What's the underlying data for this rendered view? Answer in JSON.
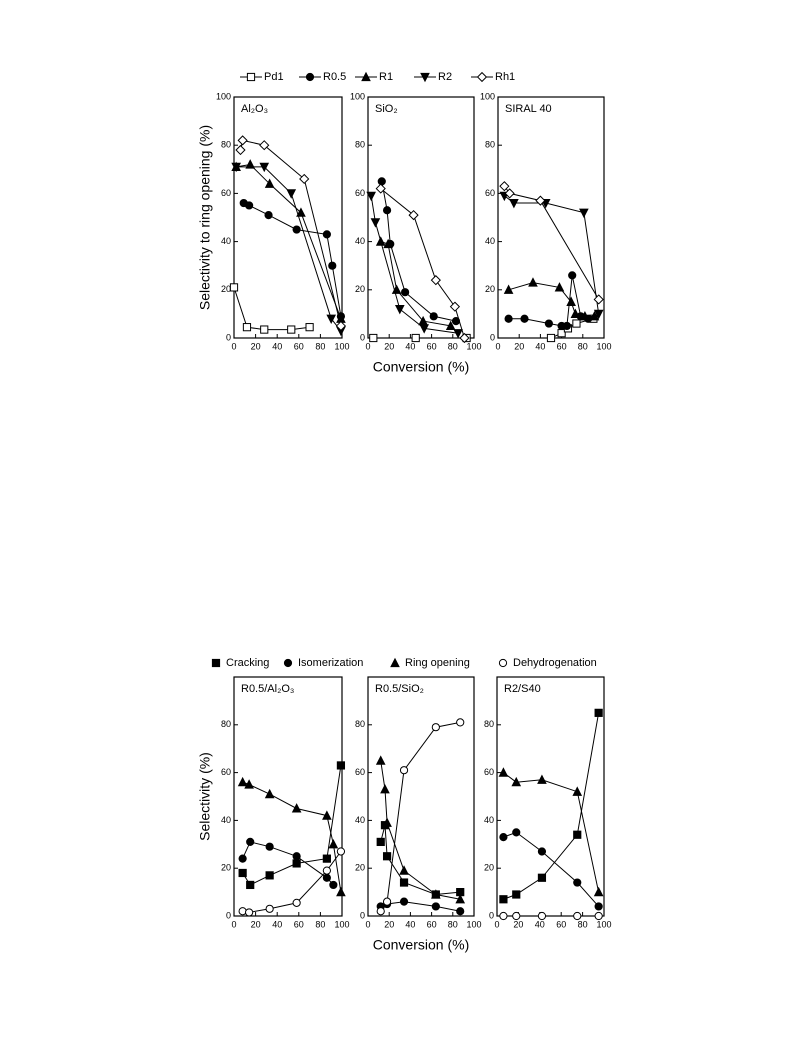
{
  "chart_data": [
    {
      "type": "scatter",
      "title": "Al₂O₃",
      "ylabel": "Selectivity to ring opening (%)",
      "xlim": [
        0,
        100
      ],
      "ylim": [
        0,
        100
      ],
      "xticks": [
        0,
        20,
        40,
        60,
        80,
        100
      ],
      "yticks": [
        0,
        20,
        40,
        60,
        80,
        100
      ],
      "series": [
        {
          "name": "Pd1",
          "color": "#000000",
          "marker": "open-square",
          "x": [
            0,
            12,
            28,
            53,
            70
          ],
          "values": [
            21,
            4.5,
            3.5,
            3.5,
            4.5
          ]
        },
        {
          "name": "R0.5",
          "color": "#000000",
          "marker": "filled-circle",
          "x": [
            9,
            14,
            32,
            58,
            86,
            91,
            99
          ],
          "values": [
            56,
            55,
            51,
            45,
            43,
            30,
            9
          ]
        },
        {
          "name": "R1",
          "color": "#000000",
          "marker": "filled-triangle-up",
          "x": [
            2,
            15,
            33,
            62,
            99
          ],
          "values": [
            71,
            72,
            64,
            52,
            8
          ]
        },
        {
          "name": "R2",
          "color": "#000000",
          "marker": "filled-triangle-down",
          "x": [
            2,
            28,
            53,
            90,
            99
          ],
          "values": [
            71,
            71,
            60,
            8,
            3
          ]
        },
        {
          "name": "Rh1",
          "color": "#000000",
          "marker": "open-diamond",
          "x": [
            6,
            8,
            28,
            65,
            99
          ],
          "values": [
            78,
            82,
            80,
            66,
            5
          ]
        }
      ]
    },
    {
      "type": "scatter",
      "title": "SiO₂",
      "xlabel": "Conversion (%)",
      "xlim": [
        0,
        100
      ],
      "ylim": [
        0,
        100
      ],
      "xticks": [
        0,
        20,
        40,
        60,
        80,
        100
      ],
      "yticks": [
        0,
        20,
        40,
        60,
        80,
        100
      ],
      "series": [
        {
          "name": "Pd1",
          "color": "#000000",
          "marker": "open-square",
          "x": [
            5,
            45,
            93
          ],
          "values": [
            0,
            0,
            0
          ]
        },
        {
          "name": "R0.5",
          "color": "#000000",
          "marker": "filled-circle",
          "x": [
            13,
            18,
            21,
            35,
            62,
            83
          ],
          "values": [
            65,
            53,
            39,
            19,
            9,
            7
          ]
        },
        {
          "name": "R1",
          "color": "#000000",
          "marker": "filled-triangle-up",
          "x": [
            12,
            19,
            27,
            52,
            78
          ],
          "values": [
            40,
            39,
            20,
            7,
            5
          ]
        },
        {
          "name": "R2",
          "color": "#000000",
          "marker": "filled-triangle-down",
          "x": [
            3,
            7,
            30,
            53,
            85
          ],
          "values": [
            59,
            48,
            12,
            4,
            2
          ]
        },
        {
          "name": "Rh1",
          "color": "#000000",
          "marker": "open-diamond",
          "x": [
            12,
            43,
            64,
            82,
            91
          ],
          "values": [
            62,
            51,
            24,
            13,
            0
          ]
        }
      ]
    },
    {
      "type": "scatter",
      "title": "SIRAL 40",
      "xlim": [
        0,
        100
      ],
      "ylim": [
        0,
        100
      ],
      "xticks": [
        0,
        20,
        40,
        60,
        80,
        100
      ],
      "yticks": [
        0,
        20,
        40,
        60,
        80,
        100
      ],
      "series": [
        {
          "name": "Pd1",
          "color": "#000000",
          "marker": "open-square",
          "x": [
            50,
            60,
            66,
            74,
            90
          ],
          "values": [
            0,
            2,
            4,
            6,
            8
          ]
        },
        {
          "name": "R0.5",
          "color": "#000000",
          "marker": "filled-circle",
          "x": [
            10,
            25,
            48,
            60,
            65,
            70,
            78,
            85
          ],
          "values": [
            8,
            8,
            6,
            5,
            5,
            26,
            9,
            8
          ]
        },
        {
          "name": "R1",
          "color": "#000000",
          "marker": "filled-triangle-up",
          "x": [
            10,
            33,
            58,
            69,
            73,
            82,
            91
          ],
          "values": [
            20,
            23,
            21,
            15,
            10,
            9,
            9
          ]
        },
        {
          "name": "R2",
          "color": "#000000",
          "marker": "filled-triangle-down",
          "x": [
            6,
            15,
            45,
            81,
            95
          ],
          "values": [
            59,
            56,
            56,
            52,
            10
          ]
        },
        {
          "name": "Rh1",
          "color": "#000000",
          "marker": "open-diamond",
          "x": [
            6,
            11,
            40,
            95
          ],
          "values": [
            63,
            60,
            57,
            16
          ]
        }
      ]
    },
    {
      "type": "scatter",
      "title": "R0.5/Al₂O₃",
      "ylabel": "Selectivity (%)",
      "xlim": [
        0,
        100
      ],
      "ylim": [
        0,
        100
      ],
      "xticks": [
        0,
        20,
        40,
        60,
        80,
        100
      ],
      "yticks": [
        0,
        20,
        40,
        60,
        80
      ],
      "series": [
        {
          "name": "Cracking",
          "color": "#000000",
          "marker": "filled-square",
          "x": [
            8,
            15,
            33,
            58,
            86,
            99
          ],
          "values": [
            18,
            13,
            17,
            22,
            24,
            63
          ]
        },
        {
          "name": "Isomerization",
          "color": "#000000",
          "marker": "filled-circle",
          "x": [
            8,
            15,
            33,
            58,
            86,
            92
          ],
          "values": [
            24,
            31,
            29,
            25,
            16,
            13
          ]
        },
        {
          "name": "Ring opening",
          "color": "#000000",
          "marker": "filled-triangle-up",
          "x": [
            8,
            14,
            33,
            58,
            86,
            92,
            99
          ],
          "values": [
            56,
            55,
            51,
            45,
            42,
            30,
            10
          ]
        },
        {
          "name": "Dehydrogenation",
          "color": "#000000",
          "marker": "open-circle",
          "x": [
            8,
            14,
            33,
            58,
            86,
            99
          ],
          "values": [
            2,
            1.5,
            3,
            5.5,
            19,
            27
          ]
        }
      ]
    },
    {
      "type": "scatter",
      "title": "R0.5/SiO₂",
      "xlabel": "Conversion (%)",
      "xlim": [
        0,
        100
      ],
      "ylim": [
        0,
        100
      ],
      "xticks": [
        0,
        20,
        40,
        60,
        80,
        100
      ],
      "yticks": [
        0,
        20,
        40,
        60,
        80
      ],
      "series": [
        {
          "name": "Cracking",
          "color": "#000000",
          "marker": "filled-square",
          "x": [
            12,
            16,
            18,
            34,
            64,
            87
          ],
          "values": [
            31,
            38,
            25,
            14,
            9,
            10
          ]
        },
        {
          "name": "Isomerization",
          "color": "#000000",
          "marker": "filled-circle",
          "x": [
            12,
            18,
            34,
            64,
            87
          ],
          "values": [
            4,
            5,
            6,
            4,
            2
          ]
        },
        {
          "name": "Ring opening",
          "color": "#000000",
          "marker": "filled-triangle-up",
          "x": [
            12,
            16,
            18,
            34,
            64,
            87
          ],
          "values": [
            65,
            53,
            39,
            19,
            9,
            7
          ]
        },
        {
          "name": "Dehydrogenation",
          "color": "#000000",
          "marker": "open-circle",
          "x": [
            12,
            18,
            34,
            64,
            87
          ],
          "values": [
            2,
            6,
            61,
            79,
            81
          ]
        }
      ]
    },
    {
      "type": "scatter",
      "title": "R2/S40",
      "xlim": [
        0,
        100
      ],
      "ylim": [
        0,
        100
      ],
      "xticks": [
        0,
        20,
        40,
        60,
        80,
        100
      ],
      "yticks": [
        0,
        20,
        40,
        60,
        80
      ],
      "series": [
        {
          "name": "Cracking",
          "color": "#000000",
          "marker": "filled-square",
          "x": [
            6,
            18,
            42,
            75,
            95
          ],
          "values": [
            7,
            9,
            16,
            34,
            85
          ]
        },
        {
          "name": "Isomerization",
          "color": "#000000",
          "marker": "filled-circle",
          "x": [
            6,
            18,
            42,
            75,
            95
          ],
          "values": [
            33,
            35,
            27,
            14,
            4
          ]
        },
        {
          "name": "Ring opening",
          "color": "#000000",
          "marker": "filled-triangle-up",
          "x": [
            6,
            18,
            42,
            75,
            95
          ],
          "values": [
            60,
            56,
            57,
            52,
            10
          ]
        },
        {
          "name": "Dehydrogenation",
          "color": "#000000",
          "marker": "open-circle",
          "x": [
            6,
            18,
            42,
            75,
            95
          ],
          "values": [
            0,
            0,
            0,
            0,
            0
          ]
        }
      ]
    }
  ]
}
